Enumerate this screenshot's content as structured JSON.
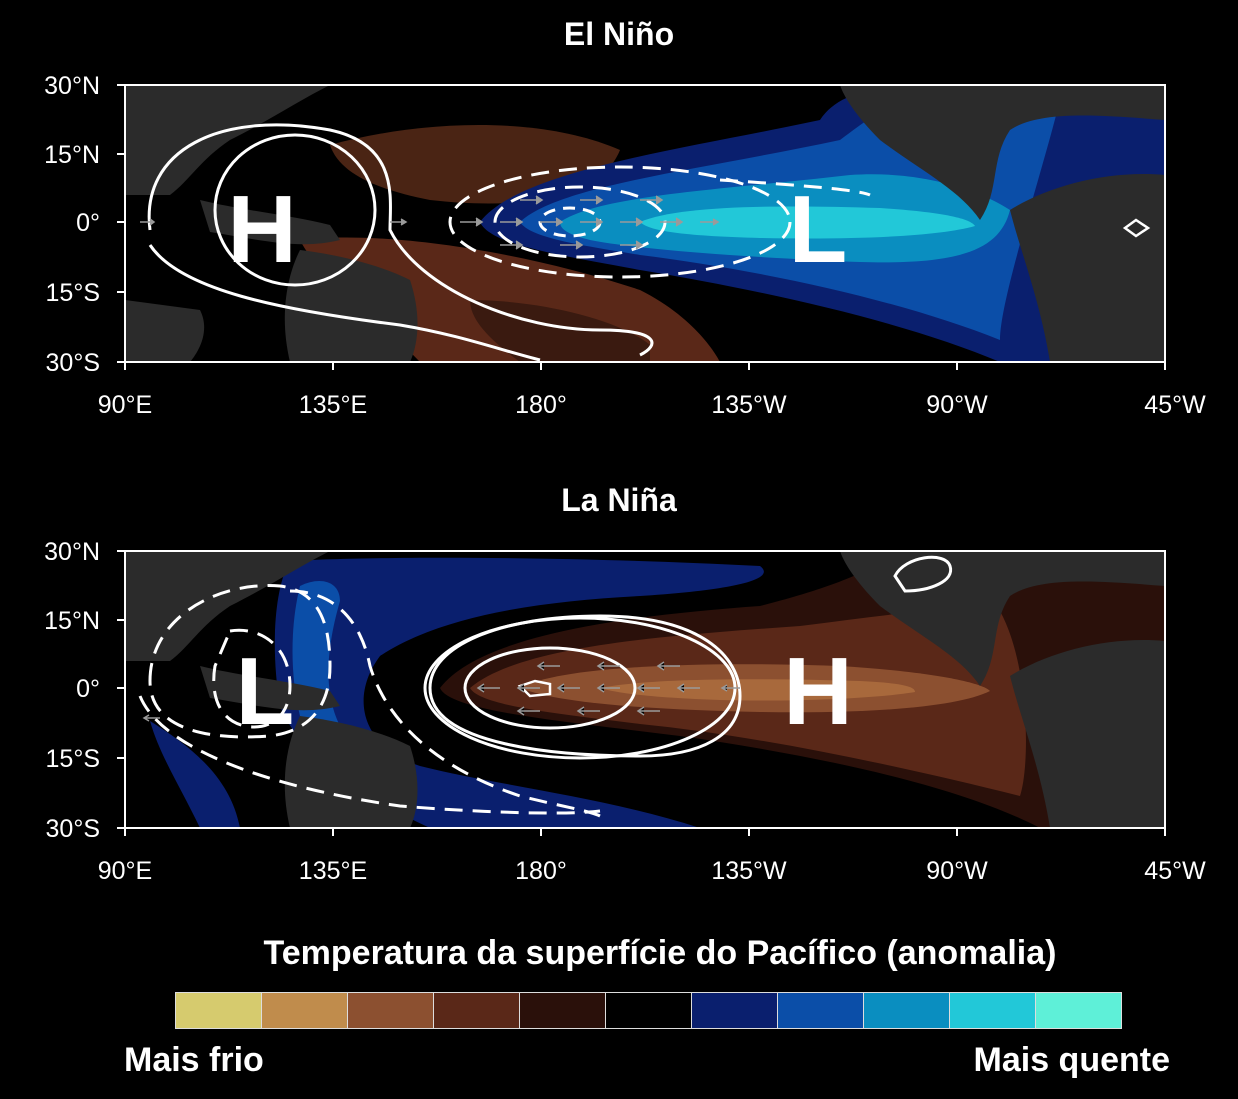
{
  "panels": [
    {
      "title": "El Niño",
      "high_label": "H",
      "low_label": "L"
    },
    {
      "title": "La Niña",
      "high_label": "H",
      "low_label": "L"
    }
  ],
  "axes": {
    "lat_ticks": [
      "30°N",
      "15°N",
      "0°",
      "15°S",
      "30°S"
    ],
    "lon_ticks": [
      "90°E",
      "135°E",
      "180°",
      "135°W",
      "90°W",
      "45°W"
    ],
    "lat_range": [
      -30,
      30
    ],
    "lon_range_east": [
      90,
      315
    ]
  },
  "legend": {
    "title": "Temperatura da superfície do Pacífico (anomalia)",
    "left_label": "Mais frio",
    "right_label": "Mais quente",
    "colors": [
      "#d6cb6e",
      "#c08c4c",
      "#8c5030",
      "#5a2818",
      "#2a100a",
      "#000000",
      "#0a1f6e",
      "#0b4ea8",
      "#0a8ec0",
      "#22c8d8",
      "#5ef0d8"
    ]
  },
  "colors": {
    "land": "#2b2b2b",
    "ocean": "#000000",
    "contour": "#ffffff",
    "wind": "#9a9a9a"
  }
}
